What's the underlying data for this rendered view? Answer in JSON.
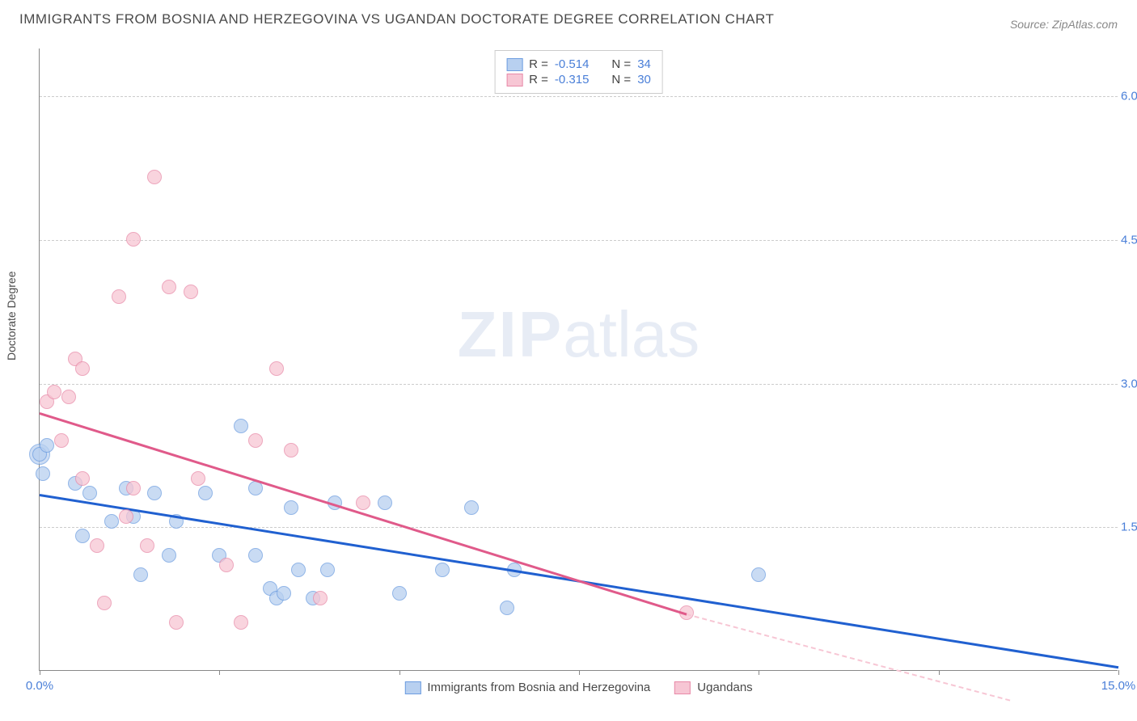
{
  "title": "IMMIGRANTS FROM BOSNIA AND HERZEGOVINA VS UGANDAN DOCTORATE DEGREE CORRELATION CHART",
  "source": "Source: ZipAtlas.com",
  "watermark": "ZIPatlas",
  "y_axis_label": "Doctorate Degree",
  "chart": {
    "type": "scatter",
    "xlim": [
      0,
      15
    ],
    "ylim": [
      0,
      6.5
    ],
    "x_ticks": [
      0,
      2.5,
      5,
      7.5,
      10,
      12.5,
      15
    ],
    "x_tick_labels": {
      "0": "0.0%",
      "15": "15.0%"
    },
    "y_gridlines": [
      1.5,
      3.0,
      4.5,
      6.0
    ],
    "y_tick_labels": {
      "1.5": "1.5%",
      "3.0": "3.0%",
      "4.5": "4.5%",
      "6.0": "6.0%"
    },
    "background": "#ffffff",
    "grid_color": "#cccccc",
    "axis_color": "#888888",
    "marker_radius": 9,
    "marker_stroke_width": 1.5
  },
  "series": [
    {
      "name": "Immigrants from Bosnia and Herzegovina",
      "fill": "#b8d0f0",
      "stroke": "#6d9de0",
      "trend_color": "#2060d0",
      "R": "-0.514",
      "N": "34",
      "trend": {
        "x1": 0,
        "y1": 1.85,
        "x2": 15,
        "y2": 0.05
      },
      "points": [
        [
          0.0,
          2.25
        ],
        [
          0.05,
          2.05
        ],
        [
          0.1,
          2.35
        ],
        [
          0.5,
          1.95
        ],
        [
          0.6,
          1.4
        ],
        [
          0.7,
          1.85
        ],
        [
          1.0,
          1.55
        ],
        [
          1.2,
          1.9
        ],
        [
          1.3,
          1.6
        ],
        [
          1.4,
          1.0
        ],
        [
          1.6,
          1.85
        ],
        [
          1.8,
          1.2
        ],
        [
          1.9,
          1.55
        ],
        [
          2.3,
          1.85
        ],
        [
          2.5,
          1.2
        ],
        [
          2.8,
          2.55
        ],
        [
          3.0,
          1.9
        ],
        [
          3.0,
          1.2
        ],
        [
          3.2,
          0.85
        ],
        [
          3.3,
          0.75
        ],
        [
          3.4,
          0.8
        ],
        [
          3.5,
          1.7
        ],
        [
          3.6,
          1.05
        ],
        [
          3.8,
          0.75
        ],
        [
          4.0,
          1.05
        ],
        [
          4.1,
          1.75
        ],
        [
          4.8,
          1.75
        ],
        [
          5.0,
          0.8
        ],
        [
          5.6,
          1.05
        ],
        [
          6.0,
          1.7
        ],
        [
          6.5,
          0.65
        ],
        [
          6.6,
          1.05
        ],
        [
          10.0,
          1.0
        ]
      ],
      "big_point": [
        0.0,
        2.25
      ]
    },
    {
      "name": "Ugandans",
      "fill": "#f7c6d4",
      "stroke": "#e88aa8",
      "trend_color": "#e05a8a",
      "R": "-0.315",
      "N": "30",
      "trend": {
        "x1": 0,
        "y1": 2.7,
        "x2": 9.0,
        "y2": 0.6
      },
      "trend_dash": {
        "x1": 9.0,
        "y1": 0.6,
        "x2": 13.5,
        "y2": -0.3
      },
      "points": [
        [
          0.1,
          2.8
        ],
        [
          0.2,
          2.9
        ],
        [
          0.4,
          2.85
        ],
        [
          0.3,
          2.4
        ],
        [
          0.5,
          3.25
        ],
        [
          0.6,
          2.0
        ],
        [
          0.6,
          3.15
        ],
        [
          0.8,
          1.3
        ],
        [
          0.9,
          0.7
        ],
        [
          1.1,
          3.9
        ],
        [
          1.2,
          1.6
        ],
        [
          1.3,
          1.9
        ],
        [
          1.3,
          4.5
        ],
        [
          1.5,
          1.3
        ],
        [
          1.6,
          5.15
        ],
        [
          1.8,
          4.0
        ],
        [
          1.9,
          0.5
        ],
        [
          2.1,
          3.95
        ],
        [
          2.2,
          2.0
        ],
        [
          2.6,
          1.1
        ],
        [
          2.8,
          0.5
        ],
        [
          3.0,
          2.4
        ],
        [
          3.3,
          3.15
        ],
        [
          3.5,
          2.3
        ],
        [
          3.9,
          0.75
        ],
        [
          4.5,
          1.75
        ],
        [
          9.0,
          0.6
        ]
      ]
    }
  ],
  "legend_top": {
    "r_label": "R =",
    "n_label": "N ="
  },
  "legend_bottom": [
    {
      "label": "Immigrants from Bosnia and Herzegovina",
      "fill": "#b8d0f0",
      "stroke": "#6d9de0"
    },
    {
      "label": "Ugandans",
      "fill": "#f7c6d4",
      "stroke": "#e88aa8"
    }
  ]
}
